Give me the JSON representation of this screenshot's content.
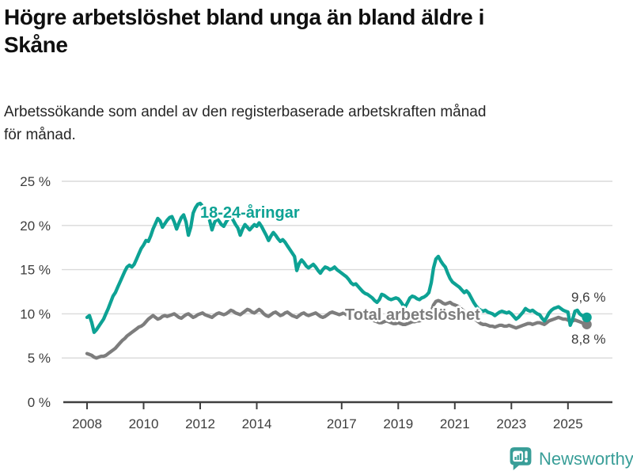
{
  "header": {
    "title_lines": [
      "Högre arbetslöshet bland unga än bland äldre i",
      "Skåne"
    ],
    "subtitle_lines": [
      "Arbetssökande som andel av den registerbaserade arbetskraften månad",
      "för månad."
    ]
  },
  "chart_data": {
    "type": "line",
    "title": "Högre arbetslöshet bland unga än bland äldre i Skåne",
    "subtitle": "Arbetssökande som andel av den registerbaserade arbetskraften månad för månad.",
    "unit": "%",
    "grid": true,
    "x_start": 2008.0,
    "x_step_months": 1,
    "x_end": 2025.67,
    "ylim": [
      0,
      25
    ],
    "y_ticks": [
      {
        "value": 0,
        "label": "0 %"
      },
      {
        "value": 5,
        "label": "5 %"
      },
      {
        "value": 10,
        "label": "10 %"
      },
      {
        "value": 15,
        "label": "15 %"
      },
      {
        "value": 20,
        "label": "20 %"
      },
      {
        "value": 25,
        "label": "25 %"
      }
    ],
    "x_ticks": [
      {
        "value": 2008,
        "label": "2008"
      },
      {
        "value": 2010,
        "label": "2010"
      },
      {
        "value": 2012,
        "label": "2012"
      },
      {
        "value": 2014,
        "label": "2014"
      },
      {
        "value": 2017,
        "label": "2017"
      },
      {
        "value": 2019,
        "label": "2019"
      },
      {
        "value": 2021,
        "label": "2021"
      },
      {
        "value": 2023,
        "label": "2023"
      },
      {
        "value": 2025,
        "label": "2025"
      }
    ],
    "series": [
      {
        "id": "youth",
        "name": "18-24-åringar",
        "color": "#0da294",
        "end_value": 9.6,
        "end_label": "9,6 %",
        "values": [
          9.6,
          9.8,
          9.0,
          7.9,
          8.2,
          8.6,
          9.0,
          9.4,
          10.0,
          10.6,
          11.3,
          12.0,
          12.4,
          13.0,
          13.6,
          14.2,
          14.8,
          15.3,
          15.5,
          15.3,
          15.6,
          16.2,
          16.8,
          17.4,
          17.8,
          18.3,
          18.2,
          18.8,
          19.6,
          20.2,
          20.8,
          20.5,
          19.8,
          20.2,
          20.6,
          20.9,
          21.0,
          20.4,
          19.6,
          20.3,
          20.9,
          21.2,
          20.4,
          18.9,
          19.8,
          21.4,
          22.0,
          22.4,
          22.5,
          22.2,
          21.8,
          21.3,
          20.6,
          19.5,
          20.3,
          20.8,
          20.5,
          20.1,
          19.9,
          20.4,
          20.8,
          21.0,
          20.6,
          20.1,
          19.7,
          18.9,
          19.6,
          20.1,
          19.8,
          19.5,
          19.8,
          20.1,
          19.9,
          20.3,
          19.9,
          19.4,
          18.9,
          18.3,
          18.8,
          19.2,
          18.9,
          18.5,
          18.2,
          18.4,
          18.1,
          17.7,
          17.3,
          16.9,
          16.5,
          14.9,
          15.7,
          16.1,
          15.8,
          15.4,
          15.2,
          15.4,
          15.6,
          15.3,
          14.9,
          14.6,
          15.0,
          15.3,
          15.2,
          15.0,
          15.1,
          15.3,
          15.0,
          14.8,
          14.6,
          14.4,
          14.2,
          13.9,
          13.5,
          13.3,
          13.4,
          13.1,
          12.8,
          12.5,
          12.3,
          12.2,
          12.0,
          11.8,
          11.5,
          11.3,
          11.6,
          12.2,
          12.1,
          11.9,
          11.7,
          11.6,
          11.7,
          11.8,
          11.7,
          11.4,
          11.0,
          10.8,
          11.3,
          11.8,
          12.0,
          11.9,
          11.7,
          11.6,
          11.8,
          11.9,
          12.1,
          12.4,
          13.5,
          15.2,
          16.2,
          16.5,
          16.0,
          15.6,
          15.3,
          14.6,
          14.0,
          13.6,
          13.4,
          13.2,
          13.0,
          12.7,
          12.4,
          12.6,
          12.3,
          11.8,
          11.3,
          10.9,
          10.6,
          10.4,
          10.3,
          10.4,
          10.2,
          10.1,
          10.0,
          9.8,
          10.0,
          10.2,
          10.3,
          10.2,
          10.1,
          10.2,
          10.0,
          9.7,
          9.4,
          9.6,
          9.9,
          10.2,
          10.6,
          10.4,
          10.3,
          10.4,
          10.2,
          10.0,
          9.9,
          9.5,
          9.2,
          9.6,
          10.1,
          10.4,
          10.6,
          10.7,
          10.8,
          10.6,
          10.4,
          10.3,
          10.2,
          8.7,
          9.4,
          10.3,
          10.4,
          10.0,
          9.8,
          9.7,
          9.6
        ]
      },
      {
        "id": "total",
        "name": "Total arbetslöshet",
        "color": "#7d7d7d",
        "end_value": 8.8,
        "end_label": "8,8 %",
        "values": [
          5.5,
          5.4,
          5.3,
          5.1,
          5.0,
          5.1,
          5.2,
          5.2,
          5.3,
          5.5,
          5.7,
          5.9,
          6.1,
          6.4,
          6.7,
          7.0,
          7.2,
          7.5,
          7.7,
          7.9,
          8.1,
          8.3,
          8.5,
          8.6,
          8.8,
          9.1,
          9.4,
          9.6,
          9.8,
          9.6,
          9.4,
          9.5,
          9.7,
          9.8,
          9.7,
          9.8,
          9.9,
          10.0,
          9.8,
          9.6,
          9.5,
          9.7,
          9.9,
          10.0,
          9.8,
          9.6,
          9.7,
          9.9,
          10.0,
          10.1,
          9.9,
          9.8,
          9.7,
          9.6,
          9.8,
          10.0,
          10.1,
          10.0,
          9.9,
          10.0,
          10.2,
          10.4,
          10.3,
          10.1,
          10.0,
          9.9,
          10.1,
          10.3,
          10.5,
          10.4,
          10.2,
          10.1,
          10.3,
          10.5,
          10.3,
          10.0,
          9.8,
          9.7,
          9.9,
          10.1,
          10.2,
          10.0,
          9.8,
          9.9,
          10.1,
          10.2,
          10.0,
          9.8,
          9.7,
          9.6,
          9.8,
          10.0,
          10.1,
          9.9,
          9.8,
          9.9,
          10.0,
          10.1,
          9.9,
          9.7,
          9.6,
          9.7,
          9.9,
          10.1,
          10.2,
          10.1,
          10.0,
          9.9,
          10.0,
          10.1,
          9.9,
          9.8,
          9.7,
          9.6,
          9.7,
          9.8,
          9.8,
          9.7,
          9.6,
          9.5,
          9.4,
          9.3,
          9.2,
          9.1,
          9.0,
          9.0,
          9.1,
          9.2,
          9.1,
          9.0,
          8.9,
          8.9,
          9.0,
          8.9,
          8.8,
          8.8,
          8.9,
          9.0,
          9.1,
          9.1,
          9.2,
          9.2,
          9.3,
          9.4,
          9.5,
          9.6,
          10.2,
          11.0,
          11.4,
          11.5,
          11.4,
          11.2,
          11.1,
          11.2,
          11.3,
          11.1,
          11.0,
          10.9,
          10.7,
          10.5,
          10.3,
          10.1,
          9.9,
          9.7,
          9.5,
          9.3,
          9.1,
          8.9,
          8.8,
          8.8,
          8.7,
          8.6,
          8.6,
          8.5,
          8.6,
          8.7,
          8.7,
          8.6,
          8.6,
          8.7,
          8.6,
          8.5,
          8.4,
          8.5,
          8.6,
          8.7,
          8.8,
          8.9,
          8.9,
          8.8,
          8.9,
          9.0,
          9.0,
          8.9,
          8.8,
          9.0,
          9.2,
          9.3,
          9.4,
          9.5,
          9.6,
          9.5,
          9.4,
          9.4,
          9.3,
          9.1,
          9.2,
          9.3,
          9.2,
          9.1,
          9.0,
          8.9,
          8.8
        ]
      }
    ],
    "legend_position": "inline-labels",
    "colors": {
      "gridline": "#dadada",
      "axis": "#3f3f3f",
      "tick_text": "#3d3d3d",
      "end_label_text": "#3b3b3b"
    }
  },
  "footer": {
    "brand": "Newsworthy",
    "brand_color": "#399e98",
    "logo_icon": "bar-chart-speech-bubble-icon"
  }
}
